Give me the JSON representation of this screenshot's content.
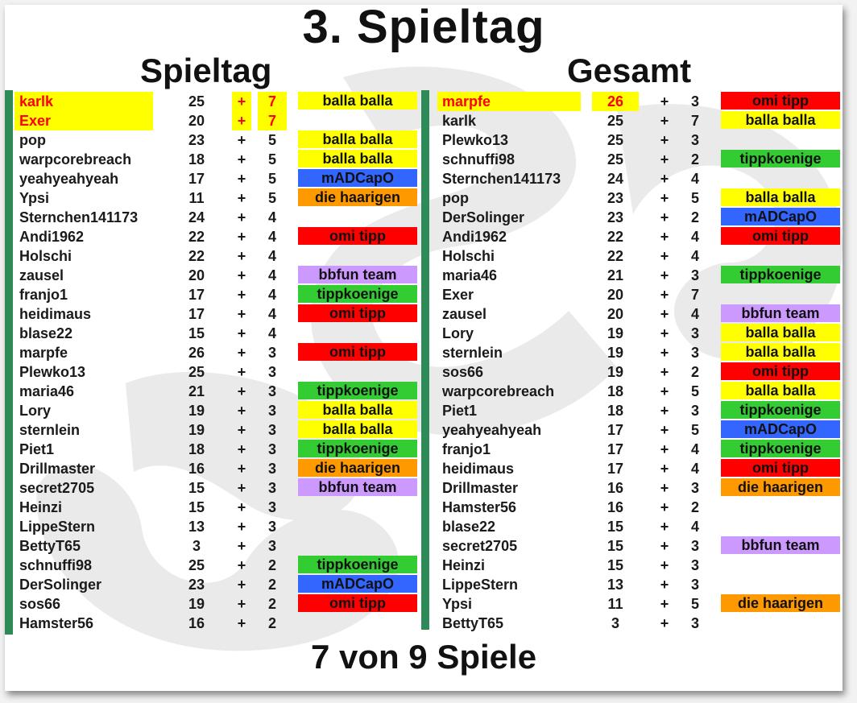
{
  "main_title": "3. Spieltag",
  "left_title": "Spieltag",
  "right_title": "Gesamt",
  "footer": "7 von 9 Spiele",
  "team_colors": {
    "balla balla": "#ffff00",
    "omi tipp": "#ff0000",
    "mADCapO": "#3366ff",
    "die haarigen": "#ff9900",
    "bbfun team": "#cc99ff",
    "tippkoenige": "#33cc33"
  },
  "spieltag": [
    {
      "name": "karlk",
      "points": "25",
      "plus": "+",
      "gain": "7",
      "team": "balla balla",
      "highlight": true
    },
    {
      "name": "Exer",
      "points": "20",
      "plus": "+",
      "gain": "7",
      "team": "",
      "highlight": true
    },
    {
      "name": "pop",
      "points": "23",
      "plus": "+",
      "gain": "5",
      "team": "balla balla"
    },
    {
      "name": "warpcorebreach",
      "points": "18",
      "plus": "+",
      "gain": "5",
      "team": "balla balla"
    },
    {
      "name": "yeahyeahyeah",
      "points": "17",
      "plus": "+",
      "gain": "5",
      "team": "mADCapO"
    },
    {
      "name": "Ypsi",
      "points": "11",
      "plus": "+",
      "gain": "5",
      "team": "die haarigen"
    },
    {
      "name": "Sternchen141173",
      "points": "24",
      "plus": "+",
      "gain": "4",
      "team": ""
    },
    {
      "name": "Andi1962",
      "points": "22",
      "plus": "+",
      "gain": "4",
      "team": "omi tipp"
    },
    {
      "name": "Holschi",
      "points": "22",
      "plus": "+",
      "gain": "4",
      "team": ""
    },
    {
      "name": "zausel",
      "points": "20",
      "plus": "+",
      "gain": "4",
      "team": "bbfun team"
    },
    {
      "name": "franjo1",
      "points": "17",
      "plus": "+",
      "gain": "4",
      "team": "tippkoenige"
    },
    {
      "name": "heidimaus",
      "points": "17",
      "plus": "+",
      "gain": "4",
      "team": "omi tipp"
    },
    {
      "name": "blase22",
      "points": "15",
      "plus": "+",
      "gain": "4",
      "team": ""
    },
    {
      "name": "marpfe",
      "points": "26",
      "plus": "+",
      "gain": "3",
      "team": "omi tipp"
    },
    {
      "name": "Plewko13",
      "points": "25",
      "plus": "+",
      "gain": "3",
      "team": ""
    },
    {
      "name": "maria46",
      "points": "21",
      "plus": "+",
      "gain": "3",
      "team": "tippkoenige"
    },
    {
      "name": "Lory",
      "points": "19",
      "plus": "+",
      "gain": "3",
      "team": "balla balla"
    },
    {
      "name": "sternlein",
      "points": "19",
      "plus": "+",
      "gain": "3",
      "team": "balla balla"
    },
    {
      "name": "Piet1",
      "points": "18",
      "plus": "+",
      "gain": "3",
      "team": "tippkoenige"
    },
    {
      "name": "Drillmaster",
      "points": "16",
      "plus": "+",
      "gain": "3",
      "team": "die haarigen"
    },
    {
      "name": "secret2705",
      "points": "15",
      "plus": "+",
      "gain": "3",
      "team": "bbfun team"
    },
    {
      "name": "Heinzi",
      "points": "15",
      "plus": "+",
      "gain": "3",
      "team": ""
    },
    {
      "name": "LippeStern",
      "points": "13",
      "plus": "+",
      "gain": "3",
      "team": ""
    },
    {
      "name": "BettyT65",
      "points": "3",
      "plus": "+",
      "gain": "3",
      "team": ""
    },
    {
      "name": "schnuffi98",
      "points": "25",
      "plus": "+",
      "gain": "2",
      "team": "tippkoenige"
    },
    {
      "name": "DerSolinger",
      "points": "23",
      "plus": "+",
      "gain": "2",
      "team": "mADCapO"
    },
    {
      "name": "sos66",
      "points": "19",
      "plus": "+",
      "gain": "2",
      "team": "omi tipp"
    },
    {
      "name": "Hamster56",
      "points": "16",
      "plus": "+",
      "gain": "2",
      "team": ""
    }
  ],
  "gesamt": [
    {
      "name": "marpfe",
      "points": "26",
      "plus": "+",
      "gain": "3",
      "team": "omi tipp",
      "highlight": true
    },
    {
      "name": "karlk",
      "points": "25",
      "plus": "+",
      "gain": "7",
      "team": "balla balla"
    },
    {
      "name": "Plewko13",
      "points": "25",
      "plus": "+",
      "gain": "3",
      "team": ""
    },
    {
      "name": "schnuffi98",
      "points": "25",
      "plus": "+",
      "gain": "2",
      "team": "tippkoenige"
    },
    {
      "name": "Sternchen141173",
      "points": "24",
      "plus": "+",
      "gain": "4",
      "team": ""
    },
    {
      "name": "pop",
      "points": "23",
      "plus": "+",
      "gain": "5",
      "team": "balla balla"
    },
    {
      "name": "DerSolinger",
      "points": "23",
      "plus": "+",
      "gain": "2",
      "team": "mADCapO"
    },
    {
      "name": "Andi1962",
      "points": "22",
      "plus": "+",
      "gain": "4",
      "team": "omi tipp"
    },
    {
      "name": "Holschi",
      "points": "22",
      "plus": "+",
      "gain": "4",
      "team": ""
    },
    {
      "name": "maria46",
      "points": "21",
      "plus": "+",
      "gain": "3",
      "team": "tippkoenige"
    },
    {
      "name": "Exer",
      "points": "20",
      "plus": "+",
      "gain": "7",
      "team": ""
    },
    {
      "name": "zausel",
      "points": "20",
      "plus": "+",
      "gain": "4",
      "team": "bbfun team"
    },
    {
      "name": "Lory",
      "points": "19",
      "plus": "+",
      "gain": "3",
      "team": "balla balla"
    },
    {
      "name": "sternlein",
      "points": "19",
      "plus": "+",
      "gain": "3",
      "team": "balla balla"
    },
    {
      "name": "sos66",
      "points": "19",
      "plus": "+",
      "gain": "2",
      "team": "omi tipp"
    },
    {
      "name": "warpcorebreach",
      "points": "18",
      "plus": "+",
      "gain": "5",
      "team": "balla balla"
    },
    {
      "name": "Piet1",
      "points": "18",
      "plus": "+",
      "gain": "3",
      "team": "tippkoenige"
    },
    {
      "name": "yeahyeahyeah",
      "points": "17",
      "plus": "+",
      "gain": "5",
      "team": "mADCapO"
    },
    {
      "name": "franjo1",
      "points": "17",
      "plus": "+",
      "gain": "4",
      "team": "tippkoenige"
    },
    {
      "name": "heidimaus",
      "points": "17",
      "plus": "+",
      "gain": "4",
      "team": "omi tipp"
    },
    {
      "name": "Drillmaster",
      "points": "16",
      "plus": "+",
      "gain": "3",
      "team": "die haarigen"
    },
    {
      "name": "Hamster56",
      "points": "16",
      "plus": "+",
      "gain": "2",
      "team": ""
    },
    {
      "name": "blase22",
      "points": "15",
      "plus": "+",
      "gain": "4",
      "team": ""
    },
    {
      "name": "secret2705",
      "points": "15",
      "plus": "+",
      "gain": "3",
      "team": "bbfun team"
    },
    {
      "name": "Heinzi",
      "points": "15",
      "plus": "+",
      "gain": "3",
      "team": ""
    },
    {
      "name": "LippeStern",
      "points": "13",
      "plus": "+",
      "gain": "3",
      "team": ""
    },
    {
      "name": "Ypsi",
      "points": "11",
      "plus": "+",
      "gain": "5",
      "team": "die haarigen"
    },
    {
      "name": "BettyT65",
      "points": "3",
      "plus": "+",
      "gain": "3",
      "team": ""
    }
  ]
}
